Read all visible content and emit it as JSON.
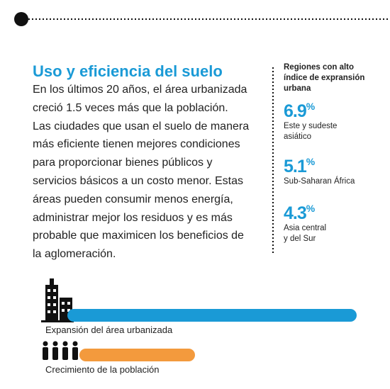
{
  "main": {
    "title": "Uso y eficiencia del suelo",
    "lines": [
      "En los últimos 20 años, el área urbanizada",
      "creció 1.5 veces más que la población.",
      "Las ciudades que usan el suelo de manera",
      "más eficiente tienen mejores condiciones",
      "para proporcionar bienes públicos y",
      "servicios básicos a un costo menor. Estas",
      "áreas pueden consumir menos energía,",
      "administrar mejor los residuos y es más",
      "probable que maximicen los beneficios de",
      "la aglomeración."
    ]
  },
  "sidebar": {
    "heading": [
      "Regiones con alto",
      "índice de expransión",
      "urbana"
    ],
    "stats": [
      {
        "value": "6.9",
        "unit": "%",
        "label": [
          "Este y sudeste",
          "asiático"
        ]
      },
      {
        "value": "5.1",
        "unit": "%",
        "label": [
          "Sub-Saharan África"
        ]
      },
      {
        "value": "4.3",
        "unit": "%",
        "label": [
          "Asia central",
          "y del Sur"
        ]
      }
    ]
  },
  "bars": [
    {
      "label": "Expansión del área urbanizada"
    },
    {
      "label": "Crecimiento de la población"
    }
  ]
}
